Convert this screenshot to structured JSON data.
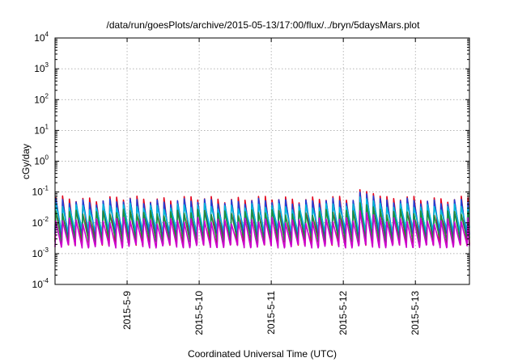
{
  "chart_data": {
    "type": "line",
    "title": "/data/run/goesPlots/archive/2015-05-13/17:00/flux/../bryn/5daysMars.plot",
    "xlabel": "Coordinated Universal Time (UTC)",
    "ylabel": "cGy/day",
    "yscale": "log",
    "ylim": [
      0.0001,
      10000
    ],
    "xlim": [
      "2015-05-08T00:00",
      "2015-05-13T18:00"
    ],
    "x_ticks": [
      "2015-5-9",
      "2015-5-10",
      "2015-5-11",
      "2015-5-12",
      "2015-5-13"
    ],
    "y_ticks": [
      {
        "base": "10",
        "exp": "-4"
      },
      {
        "base": "10",
        "exp": "-3"
      },
      {
        "base": "10",
        "exp": "-2"
      },
      {
        "base": "10",
        "exp": "-1"
      },
      {
        "base": "10",
        "exp": "0"
      },
      {
        "base": "10",
        "exp": "1"
      },
      {
        "base": "10",
        "exp": "2"
      },
      {
        "base": "10",
        "exp": "3"
      },
      {
        "base": "10",
        "exp": "4"
      }
    ],
    "grid": true,
    "sawtooth_period_hours": 2.25,
    "series": [
      {
        "color": "#e3001b",
        "peak": 0.06,
        "trough": 0.0022,
        "spike_peak": 0.12
      },
      {
        "color": "#1f3fd6",
        "peak": 0.05,
        "trough": 0.004,
        "spike_peak": 0.1
      },
      {
        "color": "#00b8d8",
        "peak": 0.035,
        "trough": 0.006,
        "spike_peak": 0.07
      },
      {
        "color": "#1e8f3a",
        "peak": 0.022,
        "trough": 0.0028,
        "spike_peak": 0.045
      },
      {
        "color": "#cc00cc",
        "peak": 0.012,
        "trough": 0.0018,
        "spike_peak": 0.025
      }
    ]
  }
}
